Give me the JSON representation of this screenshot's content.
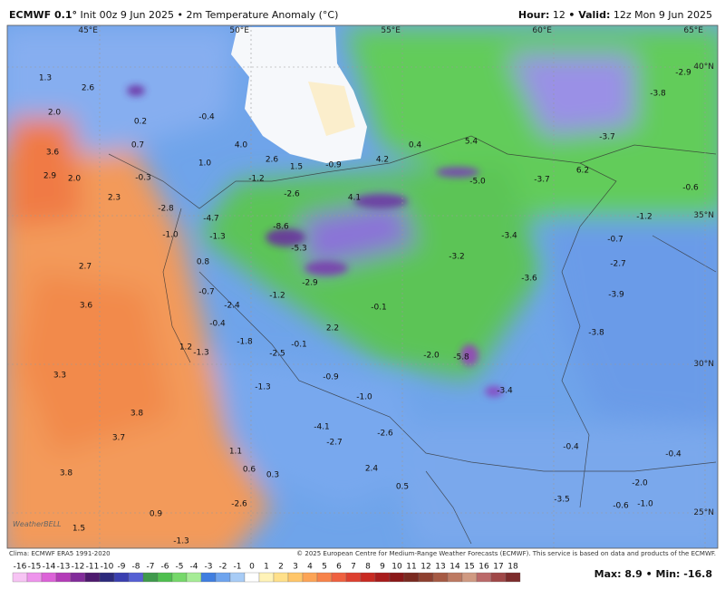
{
  "header": {
    "model": "ECMWF 0.1°",
    "init": "Init 00z 9 Jun 2025 • 2m Temperature Anomaly (°C)",
    "hour_label": "Hour:",
    "hour": "12",
    "valid_label": "• Valid:",
    "valid": "12z Mon 9 Jun 2025"
  },
  "map": {
    "longitudes": [
      "45°E",
      "50°E",
      "55°E",
      "60°E",
      "65°E"
    ],
    "latitudes": [
      "40°N",
      "35°N",
      "30°N",
      "25°N"
    ],
    "anomaly_labels": [
      "1.3",
      "2.6",
      "2.0",
      "0.2",
      "0.7",
      "-0.4",
      "4.0",
      "2.6",
      "1.5",
      "-0.9",
      "4.2",
      "0.4",
      "3.6",
      "2.9",
      "2.0",
      "-0.3",
      "1.0",
      "-1.2",
      "2.3",
      "-2.8",
      "-2.6",
      "4.1",
      "-5.0",
      "-3.7",
      "-1.0",
      "-1.3",
      "-4.7",
      "-8.6",
      "-5.3",
      "2.7",
      "0.8",
      "-2.9",
      "-0.7",
      "-2.4",
      "-1.2",
      "-0.1",
      "3.6",
      "-0.4",
      "2.2",
      "-1.8",
      "-1.3",
      "1.2",
      "-0.1",
      "-2.5",
      "3.3",
      "-0.9",
      "-2.0",
      "-5.8",
      "-1.3",
      "-1.0",
      "-3.4",
      "3.8",
      "3.7",
      "-4.1",
      "-2.7",
      "-2.6",
      "1.1",
      "0.6",
      "0.3",
      "2.4",
      "3.8",
      "0.5",
      "-2.6",
      "0.9",
      "1.5",
      "-1.3",
      "-0.4",
      "-0.4",
      "-2.0",
      "-3.5",
      "-1.0",
      "-0.6",
      "-3.4",
      "-3.2",
      "-3.6",
      "-2.7",
      "-0.7",
      "-3.9",
      "-3.8",
      "-1.2",
      "-0.6",
      "6.2",
      "-3.7",
      "-3.8",
      "-2.9",
      "5.4"
    ],
    "watermark": "WeatherBELL"
  },
  "colorbar": {
    "ticks": [
      -16,
      -15,
      -14,
      -13,
      -12,
      -11,
      -10,
      -9,
      -8,
      -7,
      -6,
      -5,
      -4,
      -3,
      -2,
      -1,
      0,
      1,
      2,
      3,
      4,
      5,
      6,
      7,
      8,
      9,
      10,
      11,
      12,
      13,
      14,
      15,
      16,
      17,
      18
    ],
    "colors": [
      "#f7c4f4",
      "#ee94ec",
      "#dc62d8",
      "#b43cb8",
      "#822c9a",
      "#4e1a6e",
      "#2c2a7c",
      "#3a3fb0",
      "#5560d4",
      "#3f9a4c",
      "#4fbf4f",
      "#76d86a",
      "#a6ec96",
      "#3f7ee0",
      "#6ea4ee",
      "#a8ccf6",
      "#ffffff",
      "#fff3b8",
      "#ffe08a",
      "#ffc66a",
      "#fca456",
      "#f7834a",
      "#ef6140",
      "#dd4030",
      "#c82a22",
      "#a81c1c",
      "#8a1818",
      "#7a2a20",
      "#8e4030",
      "#a65a44",
      "#bd7a62",
      "#d09a82",
      "#bb6a6a",
      "#a04848",
      "#7d2c2c"
    ]
  },
  "footer": {
    "clima": "Clima: ECMWF ERA5 1991-2020",
    "copyright": "© 2025 European Centre for Medium-Range Weather Forecasts (ECMWF). This service is based on data and products of the ECMWF.",
    "maxmin": "Max: 8.9 • Min: -16.8"
  }
}
